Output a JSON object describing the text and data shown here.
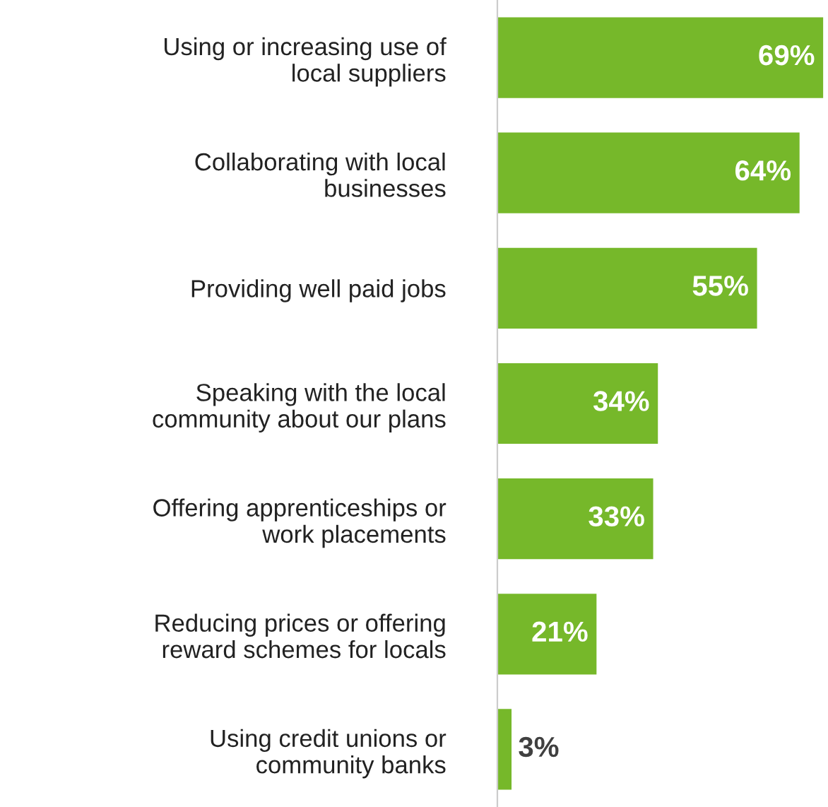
{
  "chart_data": {
    "type": "bar",
    "orientation": "horizontal",
    "categories": [
      "Using or increasing use of\nlocal suppliers",
      "Collaborating with local\nbusinesses",
      "Providing well paid jobs",
      "Speaking with the local\ncommunity about our plans",
      "Offering apprenticeships or\nwork placements",
      "Reducing prices or offering\nreward schemes for locals",
      "Using credit unions or\ncommunity banks"
    ],
    "values": [
      69,
      64,
      55,
      34,
      33,
      21,
      3
    ],
    "value_labels": [
      "69%",
      "64%",
      "55%",
      "34%",
      "33%",
      "21%",
      "3%"
    ],
    "color": "#76b82a",
    "xlim": [
      0,
      69.5
    ],
    "tick_labels": "y",
    "grid": false,
    "legend": false
  }
}
